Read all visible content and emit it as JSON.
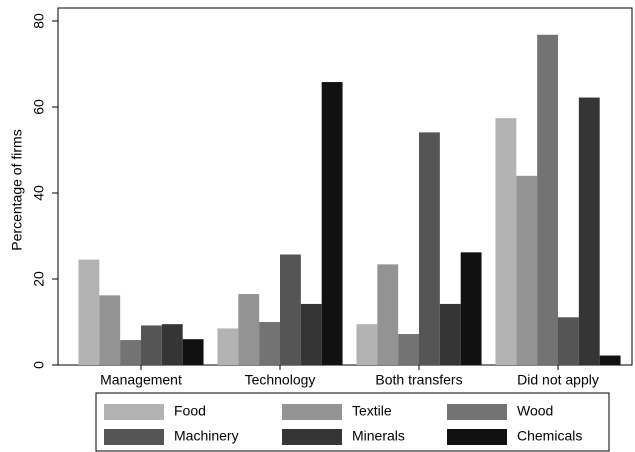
{
  "chart_data": {
    "type": "bar",
    "y_label": "Percentage of firms",
    "categories": [
      "Management",
      "Technology",
      "Both transfers",
      "Did not apply"
    ],
    "series": [
      {
        "name": "Food",
        "color": "#b3b3b3",
        "values": [
          24.5,
          8.5,
          9.5,
          57.4
        ]
      },
      {
        "name": "Textile",
        "color": "#939393",
        "values": [
          16.2,
          16.5,
          23.4,
          44
        ]
      },
      {
        "name": "Wood",
        "color": "#737373",
        "values": [
          5.8,
          10,
          7.2,
          76.8
        ]
      },
      {
        "name": "Machinery",
        "color": "#555555",
        "values": [
          9.2,
          25.7,
          54.1,
          11.1
        ]
      },
      {
        "name": "Minerals",
        "color": "#353535",
        "values": [
          9.5,
          14.2,
          14.2,
          62.2
        ]
      },
      {
        "name": "Chemicals",
        "color": "#111111",
        "values": [
          6,
          65.8,
          26.2,
          2.2
        ]
      }
    ],
    "ylim": [
      0,
      80
    ],
    "yticks": [
      0,
      20,
      40,
      60,
      80
    ],
    "grid": false,
    "legend": "bottom"
  }
}
